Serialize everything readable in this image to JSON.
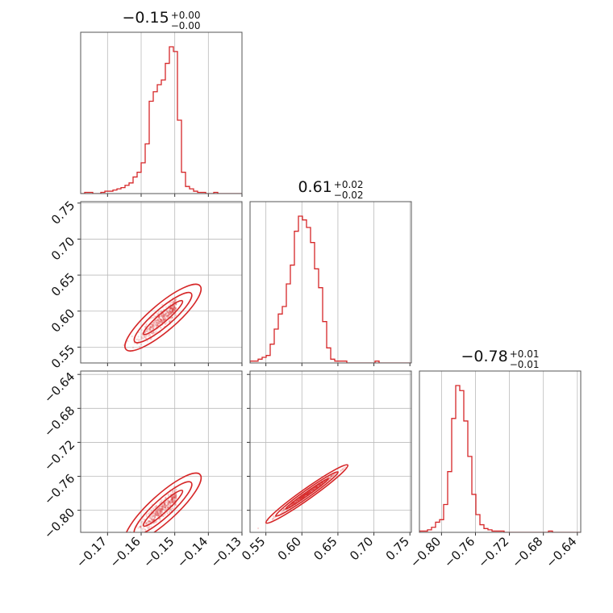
{
  "chart_data": {
    "type": "corner",
    "color": "#d62728",
    "grid": true,
    "parameters": [
      {
        "title": {
          "value": "−0.15",
          "plus": "+0.00",
          "minus": "−0.00"
        },
        "range": [
          -0.178,
          -0.13
        ],
        "ticks": [
          {
            "value": -0.17,
            "label": "−0.17"
          },
          {
            "value": -0.16,
            "label": "−0.16"
          },
          {
            "value": -0.15,
            "label": "−0.15"
          },
          {
            "value": -0.14,
            "label": "−0.14"
          },
          {
            "value": -0.13,
            "label": "−0.13"
          }
        ],
        "histogram": {
          "bin_width": 0.0012,
          "counts": [
            0,
            1,
            1,
            0,
            0,
            1,
            2,
            2,
            3,
            4,
            5,
            7,
            9,
            14,
            18,
            26,
            42,
            78,
            86,
            92,
            96,
            110,
            124,
            120,
            62,
            18,
            6,
            4,
            2,
            1,
            1,
            0,
            0,
            1,
            0,
            0,
            0,
            0,
            0,
            0
          ]
        }
      },
      {
        "title": {
          "value": "0.61",
          "plus": "+0.02",
          "minus": "−0.02"
        },
        "range": [
          0.528,
          0.752
        ],
        "ticks": [
          {
            "value": 0.55,
            "label": "0.55"
          },
          {
            "value": 0.6,
            "label": "0.60"
          },
          {
            "value": 0.65,
            "label": "0.65"
          },
          {
            "value": 0.7,
            "label": "0.70"
          },
          {
            "value": 0.75,
            "label": "0.75"
          }
        ],
        "histogram": {
          "bin_width": 0.0056,
          "counts": [
            1,
            1,
            2,
            3,
            4,
            10,
            18,
            26,
            30,
            42,
            52,
            70,
            78,
            76,
            72,
            64,
            50,
            40,
            22,
            8,
            2,
            1,
            1,
            1,
            0,
            0,
            0,
            0,
            0,
            0,
            0,
            1,
            0,
            0,
            0,
            0,
            0,
            0,
            0,
            0
          ]
        }
      },
      {
        "title": {
          "value": "−0.78",
          "plus": "+0.01",
          "minus": "−0.01"
        },
        "range": [
          -0.826,
          -0.636
        ],
        "ticks": [
          {
            "value": -0.8,
            "label": "−0.80"
          },
          {
            "value": -0.76,
            "label": "−0.76"
          },
          {
            "value": -0.72,
            "label": "−0.72"
          },
          {
            "value": -0.68,
            "label": "−0.68"
          },
          {
            "value": -0.64,
            "label": "−0.64"
          }
        ],
        "histogram": {
          "bin_width": 0.00475,
          "counts": [
            1,
            1,
            2,
            4,
            8,
            10,
            22,
            48,
            90,
            116,
            112,
            88,
            60,
            30,
            14,
            6,
            3,
            2,
            1,
            1,
            1,
            0,
            0,
            0,
            0,
            0,
            0,
            0,
            0,
            0,
            0,
            0,
            1,
            0,
            0,
            0,
            0,
            0,
            0,
            0
          ]
        }
      }
    ],
    "pairs": [
      {
        "row": 1,
        "col": 0,
        "relation": {
          "slope": 4.0,
          "intercept": 1.205
        },
        "contour_levels": [
          1,
          2,
          3
        ]
      },
      {
        "row": 2,
        "col": 0,
        "relation": {
          "slope": 3.6,
          "intercept": -0.245
        },
        "contour_levels": [
          1,
          2,
          3
        ]
      },
      {
        "row": 2,
        "col": 1,
        "relation": {
          "slope": 0.6,
          "intercept": -1.145
        },
        "contour_levels": [
          1,
          2,
          3
        ]
      }
    ]
  }
}
